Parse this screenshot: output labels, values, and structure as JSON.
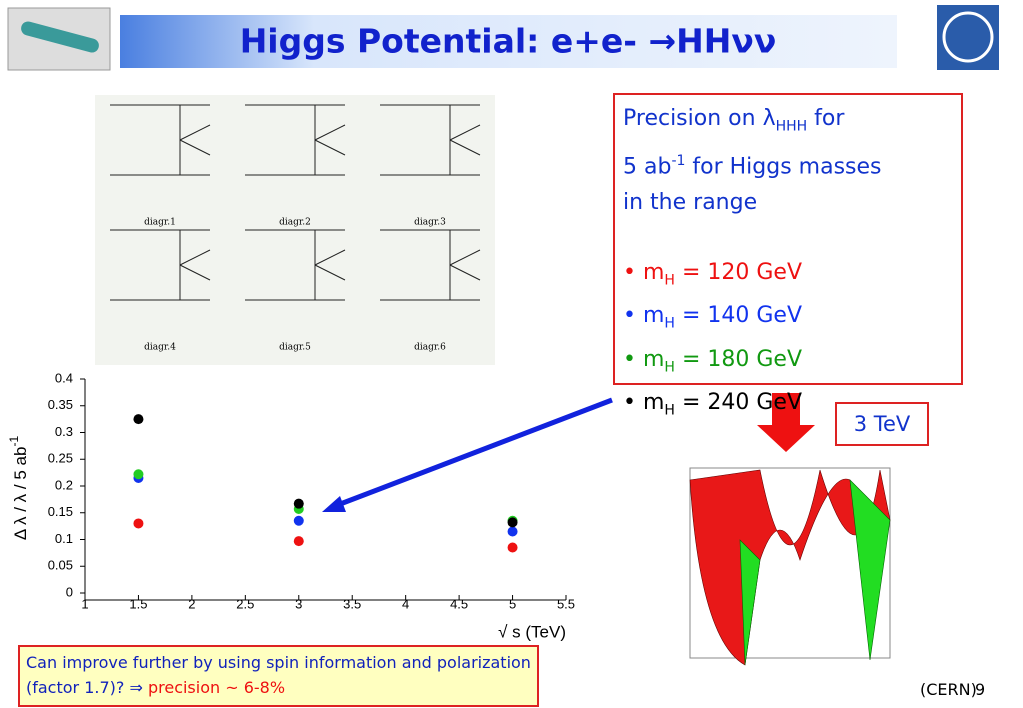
{
  "header": {
    "title": "Higgs Potential: e+e- →HHνν"
  },
  "diagrams": [
    "diagr.1",
    "diagr.2",
    "diagr.3",
    "diagr.4",
    "diagr.5",
    "diagr.6"
  ],
  "chart_data": {
    "type": "scatter",
    "y_label": "Δ λ / λ / 5 ab",
    "y_label_sup": "-1",
    "x_label": "√ s (TeV)",
    "xlim": [
      1,
      5.5
    ],
    "xticks": [
      1,
      1.5,
      2,
      2.5,
      3,
      3.5,
      4,
      4.5,
      5,
      5.5
    ],
    "ylim": [
      0,
      0.4
    ],
    "yticks": [
      0,
      0.05,
      0.1,
      0.15,
      0.2,
      0.25,
      0.3,
      0.35,
      0.4
    ],
    "grid": false,
    "series": [
      {
        "color": "#ee1111",
        "x": [
          1.5,
          3,
          5
        ],
        "values": [
          0.13,
          0.097,
          0.085
        ]
      },
      {
        "color": "#1133ee",
        "x": [
          1.5,
          3,
          5
        ],
        "values": [
          0.215,
          0.135,
          0.115
        ]
      },
      {
        "color": "#22cc22",
        "x": [
          1.5,
          3,
          5
        ],
        "values": [
          0.222,
          0.157,
          0.135
        ]
      },
      {
        "color": "#000000",
        "x": [
          1.5,
          3,
          5
        ],
        "values": [
          0.325,
          0.167,
          0.132
        ]
      }
    ]
  },
  "precision_box": {
    "line1": "Precision on ",
    "lambda": "λ",
    "lambda_sub": "HHH",
    "for": "  for",
    "line2": "5 ab",
    "line2_sup": "-1",
    "line2_rest": " for Higgs masses",
    "line3": "in the range",
    "items": [
      {
        "bullet": "•",
        "m": "m",
        "sub": "H",
        "text": " = 120 GeV",
        "color": "#ee1111"
      },
      {
        "bullet": "•",
        "m": "m",
        "sub": "H",
        "text": " = 140 GeV",
        "color": "#1133ee"
      },
      {
        "bullet": "•",
        "m": "m",
        "sub": "H",
        "text": " = 180 GeV",
        "color": "#119911"
      },
      {
        "bullet": "•",
        "m": "m",
        "sub": "H",
        "text": " = 240 GeV",
        "color": "#000000"
      }
    ]
  },
  "energy_label": "3 TeV",
  "note": {
    "text": "Can improve further by using spin information and polarization (factor 1.7)? ⇒",
    "highlight": " precision ~ 6-8%"
  },
  "footer": {
    "source": "(CERN)",
    "page": "9"
  }
}
